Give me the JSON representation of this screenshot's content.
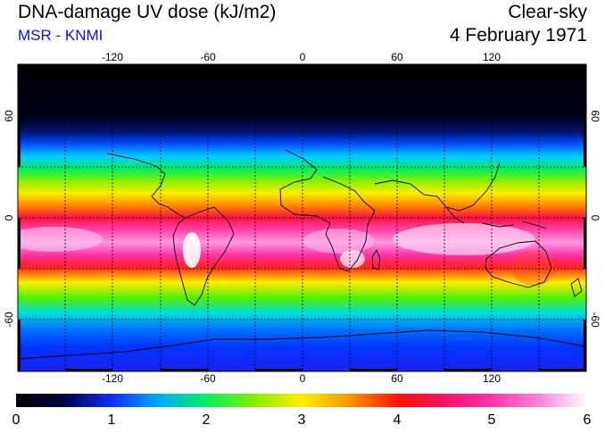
{
  "header": {
    "title": "DNA-damage UV dose (kJ/m2)",
    "subtitle": "MSR - KNMI",
    "sky_condition": "Clear-sky",
    "date": "4 February 1971"
  },
  "colors": {
    "subtitle": "#1010ee"
  },
  "map": {
    "lon_ticks": [
      "-120",
      "-60",
      "0",
      "60",
      "120"
    ],
    "lat_ticks": [
      "60",
      "0",
      "-60"
    ]
  },
  "colorbar": {
    "labels": [
      "0",
      "1",
      "2",
      "3",
      "4",
      "5",
      "6"
    ]
  }
}
